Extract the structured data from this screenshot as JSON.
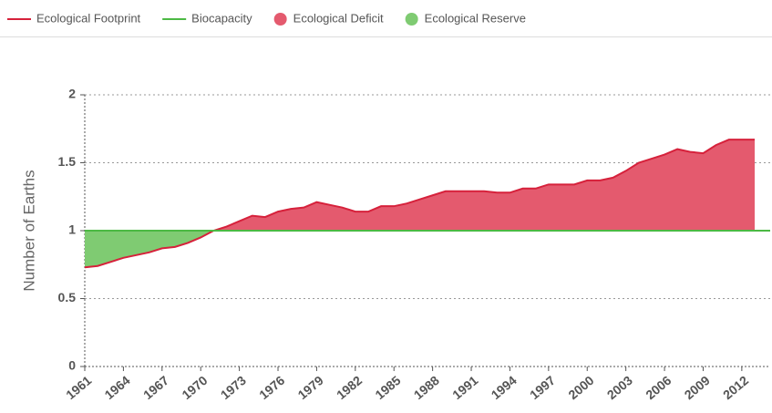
{
  "chart_data": {
    "type": "area-line",
    "x": [
      1961,
      1962,
      1963,
      1964,
      1965,
      1966,
      1967,
      1968,
      1969,
      1970,
      1971,
      1972,
      1973,
      1974,
      1975,
      1976,
      1977,
      1978,
      1979,
      1980,
      1981,
      1982,
      1983,
      1984,
      1985,
      1986,
      1987,
      1988,
      1989,
      1990,
      1991,
      1992,
      1993,
      1994,
      1995,
      1996,
      1997,
      1998,
      1999,
      2000,
      2001,
      2002,
      2003,
      2004,
      2005,
      2006,
      2007,
      2008,
      2009,
      2010,
      2011,
      2012,
      2013
    ],
    "series": [
      {
        "name": "Ecological Footprint",
        "color": "#d6213b",
        "values": [
          0.73,
          0.74,
          0.77,
          0.8,
          0.82,
          0.84,
          0.87,
          0.88,
          0.91,
          0.95,
          1.0,
          1.03,
          1.07,
          1.11,
          1.1,
          1.14,
          1.16,
          1.17,
          1.21,
          1.19,
          1.17,
          1.14,
          1.14,
          1.18,
          1.18,
          1.2,
          1.23,
          1.26,
          1.29,
          1.29,
          1.29,
          1.29,
          1.28,
          1.28,
          1.31,
          1.31,
          1.34,
          1.34,
          1.34,
          1.37,
          1.37,
          1.39,
          1.44,
          1.5,
          1.53,
          1.56,
          1.6,
          1.58,
          1.57,
          1.63,
          1.67,
          1.67,
          1.67
        ]
      },
      {
        "name": "Biocapacity",
        "color": "#4cb944",
        "values": [
          1,
          1,
          1,
          1,
          1,
          1,
          1,
          1,
          1,
          1,
          1,
          1,
          1,
          1,
          1,
          1,
          1,
          1,
          1,
          1,
          1,
          1,
          1,
          1,
          1,
          1,
          1,
          1,
          1,
          1,
          1,
          1,
          1,
          1,
          1,
          1,
          1,
          1,
          1,
          1,
          1,
          1,
          1,
          1,
          1,
          1,
          1,
          1,
          1,
          1,
          1,
          1,
          1
        ]
      }
    ],
    "areas": [
      {
        "name": "Ecological Deficit",
        "color": "#e45a6e"
      },
      {
        "name": "Ecological Reserve",
        "color": "#7fcb72"
      }
    ],
    "ylabel": "Number of Earths",
    "xlim": [
      1961,
      2013
    ],
    "xticks": [
      1961,
      1964,
      1967,
      1970,
      1973,
      1976,
      1979,
      1982,
      1985,
      1988,
      1991,
      1994,
      1997,
      2000,
      2003,
      2006,
      2009,
      2012
    ],
    "ylim": [
      0,
      2
    ],
    "yticks": [
      0,
      0.5,
      1,
      1.5,
      2
    ],
    "grid": true
  }
}
